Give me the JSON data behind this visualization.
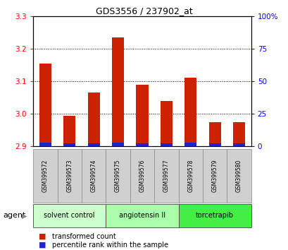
{
  "title": "GDS3556 / 237902_at",
  "samples": [
    "GSM399572",
    "GSM399573",
    "GSM399574",
    "GSM399575",
    "GSM399576",
    "GSM399577",
    "GSM399578",
    "GSM399579",
    "GSM399580"
  ],
  "transformed_count": [
    3.155,
    2.993,
    3.065,
    3.235,
    3.09,
    3.04,
    3.112,
    2.975,
    2.975
  ],
  "percentile_rank": [
    3,
    2,
    2,
    3,
    2,
    2,
    3,
    2,
    2
  ],
  "bar_bottom": 2.9,
  "ylim": [
    2.9,
    3.3
  ],
  "ylim_right": [
    0,
    100
  ],
  "yticks_left": [
    2.9,
    3.0,
    3.1,
    3.2,
    3.3
  ],
  "yticks_right": [
    0,
    25,
    50,
    75,
    100
  ],
  "gridlines_at": [
    3.0,
    3.1,
    3.2
  ],
  "bar_color_red": "#cc2200",
  "bar_color_blue": "#2222cc",
  "agent_groups": [
    {
      "label": "solvent control",
      "start": 0,
      "end": 2,
      "color": "#ccffcc"
    },
    {
      "label": "angiotensin II",
      "start": 3,
      "end": 5,
      "color": "#aaffaa"
    },
    {
      "label": "torcetrapib",
      "start": 6,
      "end": 8,
      "color": "#44ee44"
    }
  ],
  "agent_label": "agent",
  "legend_items": [
    {
      "label": "transformed count",
      "color": "#cc2200"
    },
    {
      "label": "percentile rank within the sample",
      "color": "#2222cc"
    }
  ],
  "background_color": "#ffffff",
  "plot_bg_color": "#ffffff",
  "sample_box_color": "#d0d0d0",
  "bar_width": 0.5,
  "title_fontsize": 9,
  "tick_fontsize": 7.5,
  "sample_fontsize": 5.5,
  "agent_fontsize": 7,
  "legend_fontsize": 7
}
